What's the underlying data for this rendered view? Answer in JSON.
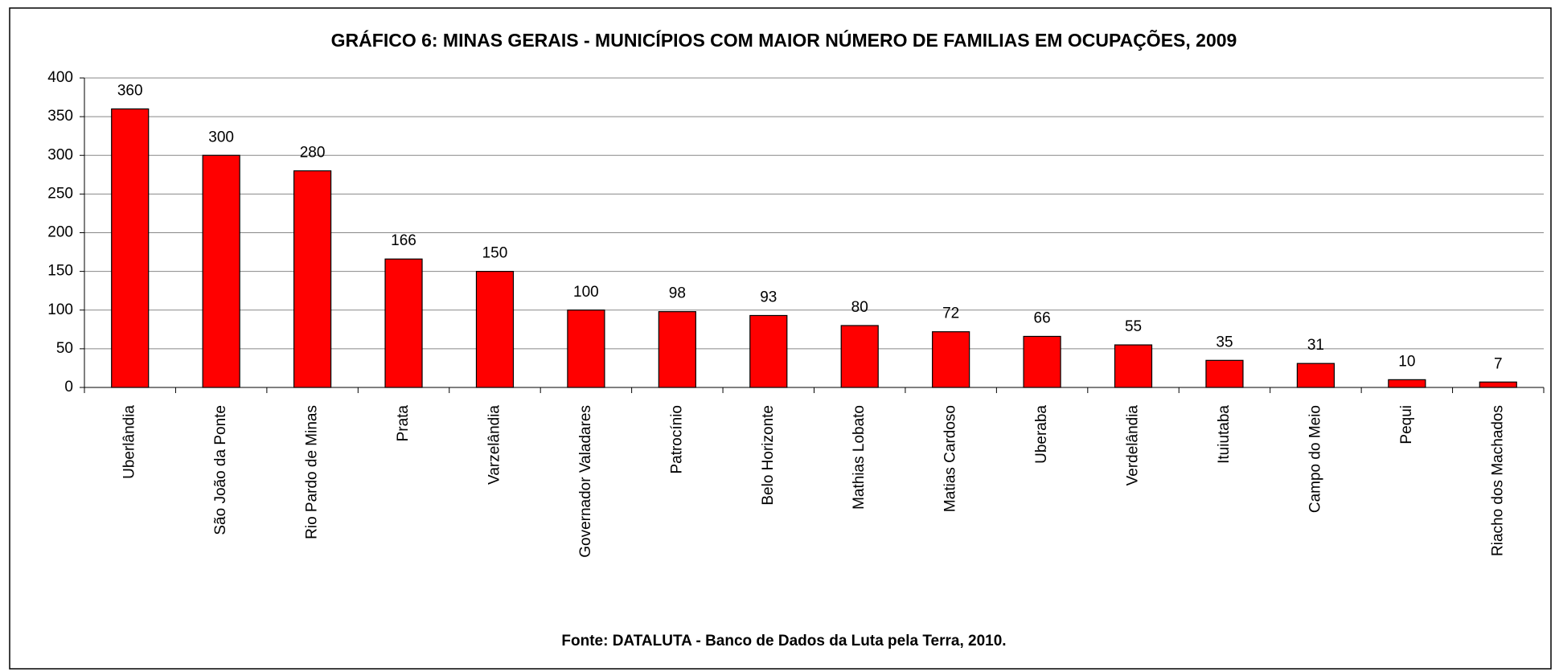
{
  "chart_data": {
    "type": "bar",
    "title": "GRÁFICO 6: MINAS GERAIS - MUNICÍPIOS COM MAIOR NÚMERO DE FAMILIAS EM OCUPAÇÕES, 2009",
    "source": "Fonte: DATALUTA  - Banco de Dados da Luta pela Terra, 2010.",
    "categories": [
      "Uberlândia",
      "São João da Ponte",
      "Rio Pardo de Minas",
      "Prata",
      "Varzelândia",
      "Governador Valadares",
      "Patrocínio",
      "Belo Horizonte",
      "Mathias Lobato",
      "Matias Cardoso",
      "Uberaba",
      "Verdelândia",
      "Ituiutaba",
      "Campo do Meio",
      "Pequi",
      "Riacho dos Machados"
    ],
    "values": [
      360,
      300,
      280,
      166,
      150,
      100,
      98,
      93,
      80,
      72,
      66,
      55,
      35,
      31,
      10,
      7
    ],
    "color": "#ff0000",
    "ylim": [
      0,
      400
    ],
    "yticks": [
      0,
      50,
      100,
      150,
      200,
      250,
      300,
      350,
      400
    ],
    "grid": true
  }
}
